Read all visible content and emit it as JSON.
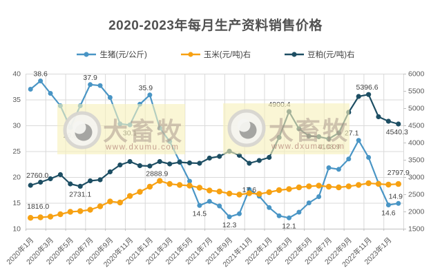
{
  "title": "2020-2023年每月生产资料销售价格",
  "watermark": {
    "brand": "大畜牧",
    "url": "www.dxumu.com"
  },
  "chart_data": {
    "type": "line",
    "title": "2020-2023年每月生产资料销售价格",
    "grid": true,
    "legend_position": "top",
    "categories": [
      "2020年1月",
      "2020年2月",
      "2020年3月",
      "2020年4月",
      "2020年5月",
      "2020年6月",
      "2020年7月",
      "2020年8月",
      "2020年9月",
      "2020年10月",
      "2020年11月",
      "2020年12月",
      "2021年1月",
      "2021年2月",
      "2021年3月",
      "2021年4月",
      "2021年5月",
      "2021年6月",
      "2021年7月",
      "2021年8月",
      "2021年9月",
      "2021年10月",
      "2021年11月",
      "2021年12月",
      "2022年1月",
      "2022年2月",
      "2022年3月",
      "2022年4月",
      "2022年5月",
      "2022年6月",
      "2022年7月",
      "2022年8月",
      "2022年9月",
      "2022年10月",
      "2022年11月",
      "2022年12月",
      "2023年1月",
      "2023年2月"
    ],
    "x_tick_labels": [
      "2020年1月",
      "2020年3月",
      "2020年5月",
      "2020年7月",
      "2020年9月",
      "2020年11月",
      "2021年1月",
      "2021年3月",
      "2021年5月",
      "2021年7月",
      "2021年9月",
      "2021年11月",
      "2022年1月",
      "2022年3月",
      "2022年5月",
      "2022年7月",
      "2022年9月",
      "2022年11月",
      "2023年1月"
    ],
    "left_axis": {
      "min": 10,
      "max": 40,
      "step": 5,
      "ticks": [
        40,
        35,
        30,
        25,
        20,
        15,
        10
      ]
    },
    "right_axis": {
      "min": 1500,
      "max": 6000,
      "step": 500,
      "ticks": [
        6000,
        5500,
        5000,
        4500,
        4000,
        3500,
        3000,
        2500,
        2000,
        1500
      ]
    },
    "series": [
      {
        "name": "生猪(元/公斤)",
        "axis": "left",
        "color": "#4995c5",
        "marker_r": 3.5,
        "values": [
          37.0,
          38.6,
          36.2,
          33.8,
          29.6,
          33.8,
          37.9,
          37.7,
          35.4,
          30.3,
          30.1,
          34.1,
          35.9,
          29.5,
          26.9,
          23.0,
          19.2,
          14.5,
          15.3,
          14.4,
          12.3,
          12.9,
          17.6,
          16.3,
          14.1,
          12.5,
          12.1,
          13.2,
          15.0,
          16.2,
          21.8,
          21.5,
          23.5,
          27.1,
          23.8,
          18.8,
          14.6,
          14.9
        ],
        "labels": [
          {
            "i": 1,
            "text": "38.6",
            "pos": "above"
          },
          {
            "i": 4,
            "text": "29.6",
            "pos": "below"
          },
          {
            "i": 6,
            "text": "37.9",
            "pos": "above"
          },
          {
            "i": 10,
            "text": "30.1",
            "pos": "below"
          },
          {
            "i": 12,
            "text": "35.9",
            "pos": "above",
            "dx": -6
          },
          {
            "i": 17,
            "text": "14.5",
            "pos": "below"
          },
          {
            "i": 20,
            "text": "12.3",
            "pos": "below"
          },
          {
            "i": 22,
            "text": "17.6",
            "pos": "mid"
          },
          {
            "i": 26,
            "text": "12.1",
            "pos": "below"
          },
          {
            "i": 33,
            "text": "27.1",
            "pos": "above",
            "dx": -10
          },
          {
            "i": 36,
            "text": "14.6",
            "pos": "below"
          },
          {
            "i": 37,
            "text": "14.9",
            "pos": "above",
            "dx": -4
          }
        ]
      },
      {
        "name": "玉米(元/吨)右",
        "axis": "right",
        "color": "#f7a112",
        "marker_r": 4.2,
        "values": [
          1816.0,
          1830,
          1850,
          1920,
          1990,
          2010,
          2050,
          2150,
          2290,
          2260,
          2450,
          2570,
          2720,
          2888.9,
          2800,
          2770,
          2750,
          2690,
          2610,
          2580,
          2520,
          2490,
          2530,
          2510,
          2560,
          2620,
          2650,
          2700,
          2730,
          2750,
          2720,
          2700,
          2730,
          2770,
          2820,
          2800,
          2780,
          2797.9
        ],
        "labels": [
          {
            "i": 0,
            "text": "1816.0",
            "pos": "above",
            "dx": 11,
            "dy": -6
          },
          {
            "i": 13,
            "text": "2888.9",
            "pos": "above",
            "dx": -4
          },
          {
            "i": 37,
            "text": "2797.9",
            "pos": "above",
            "dy": -6
          }
        ]
      },
      {
        "name": "豆粕(元/吨)右",
        "axis": "right",
        "color": "#1d4e63",
        "marker_r": 3.6,
        "values": [
          2760.0,
          2850,
          2950,
          3070,
          2800,
          2731.1,
          2890,
          2920,
          3150,
          3350,
          3450,
          3330,
          3320,
          3450,
          3380,
          3430,
          3410,
          3400,
          3550,
          3600,
          3750,
          3630,
          3400,
          3480,
          3570,
          4150,
          4900.4,
          4400,
          4190,
          4170,
          4108.9,
          4280,
          4880,
          5340,
          5396.6,
          4750,
          4620,
          4540.3
        ],
        "labels": [
          {
            "i": 0,
            "text": "2760.0",
            "pos": "above",
            "dx": 10,
            "dy": -4
          },
          {
            "i": 5,
            "text": "2731.1",
            "pos": "below"
          },
          {
            "i": 26,
            "text": "4900.4",
            "pos": "above",
            "dx": -14
          },
          {
            "i": 30,
            "text": "4108.9",
            "pos": "below"
          },
          {
            "i": 34,
            "text": "5396.6",
            "pos": "above",
            "dx": -2
          },
          {
            "i": 37,
            "text": "4540.3",
            "pos": "below",
            "dx": -2
          }
        ]
      }
    ]
  }
}
